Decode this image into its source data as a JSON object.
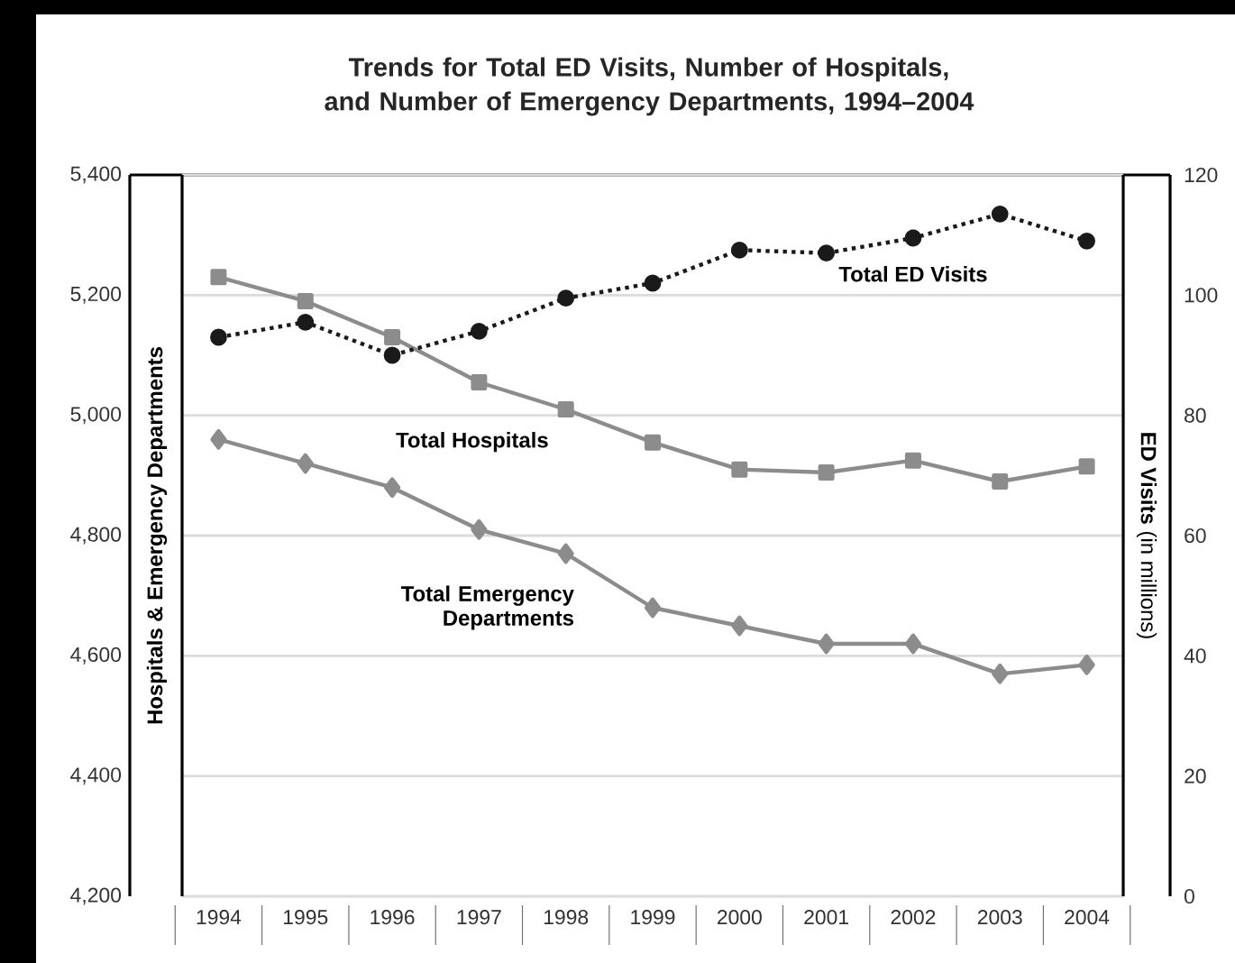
{
  "chart_data": {
    "type": "line",
    "title": "Trends for Total ED Visits, Number of Hospitals, and Number of Emergency Departments, 1994–2004",
    "ylabel": "Hospitals & Emergency Departments",
    "y2label": "**ED Visits** (in millions)",
    "categories": [
      "1994",
      "1995",
      "1996",
      "1997",
      "1998",
      "1999",
      "2000",
      "2001",
      "2002",
      "2003",
      "2004"
    ],
    "series": [
      {
        "name": "Total ED Visits",
        "color": "#1a1a1a",
        "axis": "y2",
        "marker": "circle",
        "line_style": "dotted",
        "values": [
          93,
          95.5,
          90,
          94,
          99.5,
          102,
          107.5,
          107,
          109.5,
          113.5,
          109
        ]
      },
      {
        "name": "Total Hospitals",
        "color": "#8c8c8c",
        "marker": "square",
        "line_style": "solid",
        "values": [
          5230,
          5190,
          5130,
          5055,
          5010,
          4955,
          4910,
          4905,
          4925,
          4890,
          4915
        ]
      },
      {
        "name": "Total Emergency Departments",
        "color": "#8c8c8c",
        "marker": "diamond",
        "line_style": "solid",
        "values": [
          4960,
          4920,
          4880,
          4810,
          4770,
          4680,
          4650,
          4620,
          4620,
          4570,
          4585
        ]
      }
    ],
    "ylim": [
      4200,
      5400
    ],
    "yticks": [
      {
        "value": 4200,
        "label": "4,200"
      },
      {
        "value": 4400,
        "label": "4,400"
      },
      {
        "value": 4600,
        "label": "4,600"
      },
      {
        "value": 4800,
        "label": "4,800"
      },
      {
        "value": 5000,
        "label": "5,000"
      },
      {
        "value": 5200,
        "label": "5,200"
      },
      {
        "value": 5400,
        "label": "5,400"
      }
    ],
    "y2lim": [
      0,
      120
    ],
    "y2ticks": [
      0,
      20,
      40,
      60,
      80,
      100,
      120
    ],
    "grid": "y",
    "legend": false
  }
}
